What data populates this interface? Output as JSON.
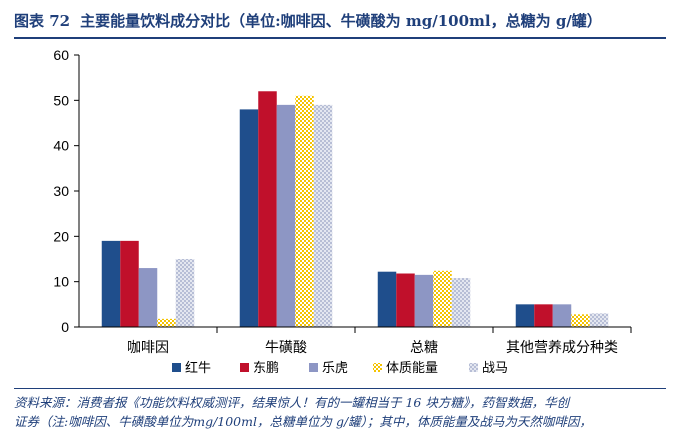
{
  "header": {
    "figure_label": "图表 72",
    "figure_title": "主要能量饮料成分对比（单位:咖啡因、牛磺酸为 mg/100ml，总糖为 g/罐）"
  },
  "source": {
    "line1": "资料来源：消费者报《功能饮料权威测评，结果惊人！有的一罐相当于 16 块方糖》，药智数据，华创",
    "line2": "证券（注:咖啡因、牛磺酸单位为mg/100ml，总糖单位为 g/罐）；其中，体质能量及战马为天然咖啡因，"
  },
  "chart_data": {
    "type": "bar",
    "categories": [
      "咖啡因",
      "牛磺酸",
      "总糖",
      "其他营养成分种类"
    ],
    "series": [
      {
        "name": "红牛",
        "values": [
          19,
          48,
          12.2,
          5
        ],
        "color": "#1f4e8c",
        "pattern": "solid"
      },
      {
        "name": "东鹏",
        "values": [
          19,
          52,
          11.8,
          5
        ],
        "color": "#c0102b",
        "pattern": "solid"
      },
      {
        "name": "乐虎",
        "values": [
          13,
          49,
          11.5,
          5
        ],
        "color": "#8d96c4",
        "pattern": "solid"
      },
      {
        "name": "体质能量",
        "values": [
          1.8,
          51,
          12.4,
          2.8
        ],
        "color": "#f5c400",
        "pattern": "checker"
      },
      {
        "name": "战马",
        "values": [
          15,
          49,
          10.8,
          3
        ],
        "color": "#c6cce0",
        "pattern": "checker"
      }
    ],
    "ylim": [
      0,
      60
    ],
    "yticks": [
      0,
      10,
      20,
      30,
      40,
      50,
      60
    ],
    "grid": false,
    "legend_position": "bottom"
  }
}
